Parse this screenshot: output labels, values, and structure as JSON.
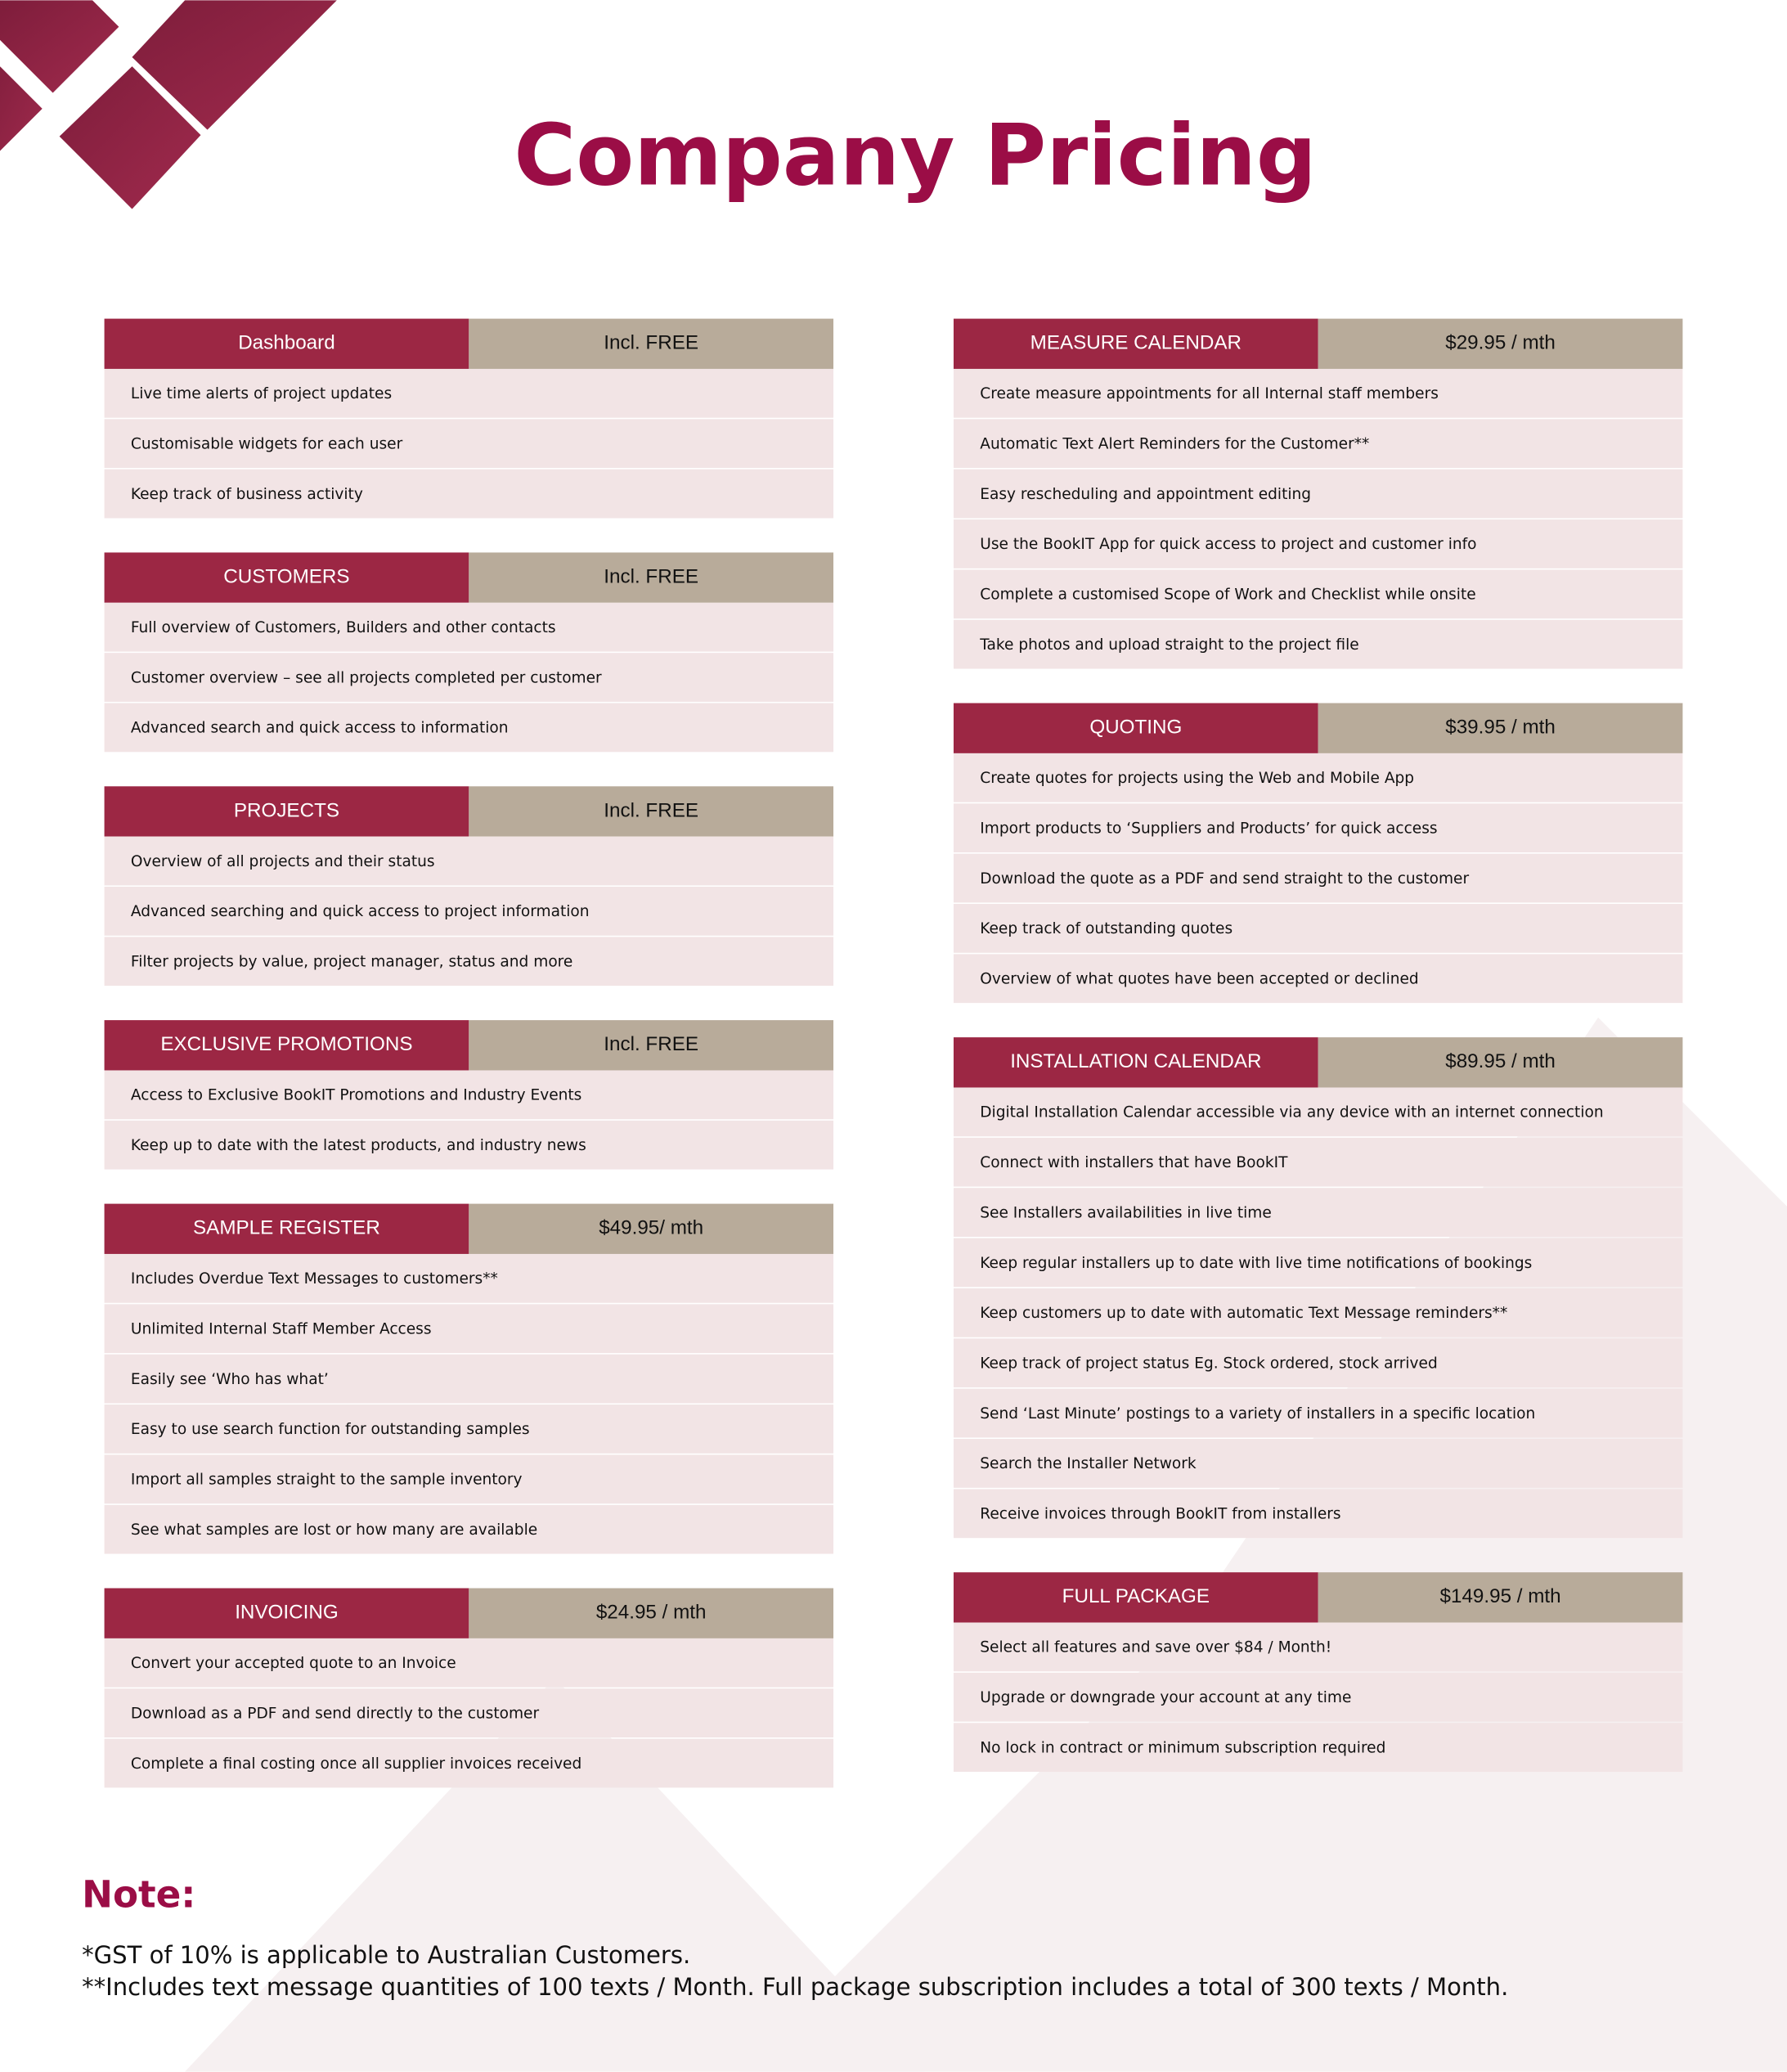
{
  "title": "Company Pricing",
  "columns": [
    [
      {
        "name": "Dashboard",
        "price": "Incl. FREE",
        "items": [
          "Live time alerts of project updates",
          "Customisable widgets for each user",
          "Keep track of business activity"
        ]
      },
      {
        "name": "CUSTOMERS",
        "price": "Incl. FREE",
        "items": [
          "Full overview of Customers, Builders and other contacts",
          "Customer overview – see all projects completed per customer",
          "Advanced search and quick access to information"
        ]
      },
      {
        "name": "PROJECTS",
        "price": "Incl. FREE",
        "items": [
          "Overview of all projects and their status",
          "Advanced searching and quick access to project information",
          "Filter projects by value, project manager, status and more"
        ]
      },
      {
        "name": "EXCLUSIVE PROMOTIONS",
        "price": "Incl. FREE",
        "items": [
          "Access to Exclusive BookIT Promotions and Industry Events",
          "Keep up to date with the latest products, and industry news"
        ]
      },
      {
        "name": "SAMPLE REGISTER",
        "price": "$49.95/ mth",
        "items": [
          "Includes Overdue Text Messages to customers**",
          "Unlimited Internal Staff Member Access",
          "Easily see ‘Who has what’",
          "Easy to use search function for outstanding samples",
          "Import all samples straight to the sample inventory",
          "See what samples are lost or how many are available"
        ]
      },
      {
        "name": "INVOICING",
        "price": "$24.95 / mth",
        "items": [
          "Convert your accepted quote to an Invoice",
          "Download as a PDF and send directly to the customer",
          "Complete a final costing once all supplier invoices received"
        ]
      }
    ],
    [
      {
        "name": "MEASURE CALENDAR",
        "price": "$29.95 / mth",
        "items": [
          "Create measure appointments for all Internal staff members",
          "Automatic Text Alert Reminders for the Customer**",
          "Easy rescheduling and appointment editing",
          "Use the BookIT App for quick access to project and customer info",
          "Complete a customised Scope of Work and Checklist while onsite",
          "Take photos and upload straight to the project file"
        ]
      },
      {
        "name": "QUOTING",
        "price": "$39.95 / mth",
        "items": [
          "Create quotes for projects using the Web and Mobile App",
          "Import products to ‘Suppliers and Products’ for quick access",
          "Download the quote as a PDF and send straight to the customer",
          "Keep track of outstanding quotes",
          "Overview of what quotes have been accepted or declined"
        ]
      },
      {
        "name": "INSTALLATION CALENDAR",
        "price": "$89.95 / mth",
        "items": [
          "Digital Installation Calendar accessible via any device with an internet connection",
          "Connect with installers that have BookIT",
          "See Installers availabilities in live time",
          "Keep regular installers up to date with live time notifications of bookings",
          "Keep customers up to date with automatic Text Message reminders**",
          "Keep track of project status Eg. Stock ordered, stock arrived",
          "Send ‘Last Minute’ postings to a variety of installers in a specific location",
          "Search the Installer Network",
          "Receive invoices through BookIT from installers"
        ]
      },
      {
        "name": "FULL PACKAGE",
        "price": "$149.95 / mth",
        "items": [
          "Select all features and save over $84 / Month!",
          "Upgrade or downgrade your account at any time",
          "No lock in contract or minimum subscription required"
        ]
      }
    ]
  ],
  "note": {
    "heading": "Note:",
    "lines": [
      "*GST of 10% is applicable to Australian Customers.",
      "**Includes text message quantities of 100 texts / Month. Full package subscription includes a total of 300 texts / Month."
    ]
  }
}
